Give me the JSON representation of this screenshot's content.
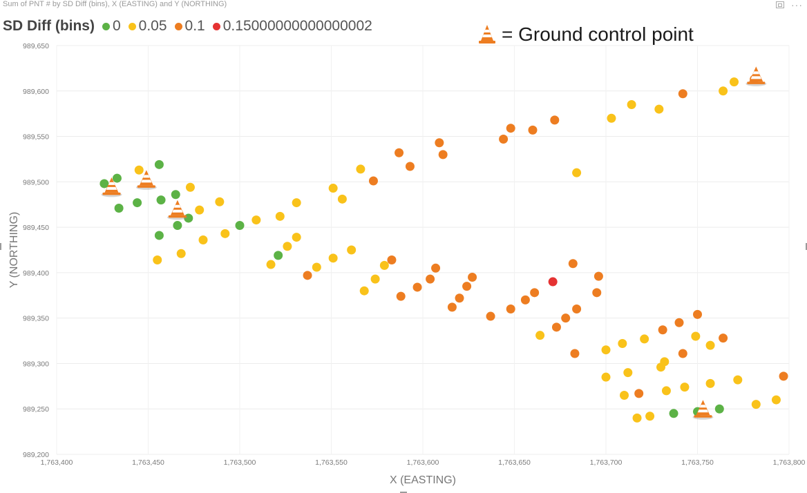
{
  "visual": {
    "title": "Sum of PNT # by SD Diff (bins), X (EASTING) and Y (NORTHING)",
    "toolbar": {
      "focus_icon": "focus-mode-icon",
      "more_icon": "more-options-icon",
      "more_label": "···"
    }
  },
  "legend": {
    "title": "SD Diff (bins)",
    "items": [
      {
        "label": "0",
        "color": "#5cb246"
      },
      {
        "label": "0.05",
        "color": "#f9c21a"
      },
      {
        "label": "0.1",
        "color": "#ed7d21"
      },
      {
        "label": "0.15000000000000002",
        "color": "#e53232"
      }
    ]
  },
  "annotation": {
    "icon": "traffic-cone-icon",
    "text": "= Ground control point"
  },
  "chart_data": {
    "type": "scatter",
    "xlabel": "X (EASTING)",
    "ylabel": "Y (NORTHING)",
    "xlim": [
      1763400,
      1763800
    ],
    "ylim": [
      989200,
      989650
    ],
    "xticks": [
      1763400,
      1763450,
      1763500,
      1763550,
      1763600,
      1763650,
      1763700,
      1763750,
      1763800
    ],
    "yticks": [
      989200,
      989250,
      989300,
      989350,
      989400,
      989450,
      989500,
      989550,
      989600,
      989650
    ],
    "xtick_labels": [
      "1,763,400",
      "1,763,450",
      "1,763,500",
      "1,763,550",
      "1,763,600",
      "1,763,650",
      "1,763,700",
      "1,763,750",
      "1,763,800"
    ],
    "ytick_labels": [
      "989,200",
      "989,250",
      "989,300",
      "989,350",
      "989,400",
      "989,450",
      "989,500",
      "989,550",
      "989,600",
      "989,650"
    ],
    "grid": true,
    "series": [
      {
        "name": "0",
        "color": "#5cb246",
        "points": [
          [
            1763426,
            989498
          ],
          [
            1763433,
            989504
          ],
          [
            1763434,
            989471
          ],
          [
            1763444,
            989477
          ],
          [
            1763456,
            989519
          ],
          [
            1763457,
            989480
          ],
          [
            1763465,
            989486
          ],
          [
            1763456,
            989441
          ],
          [
            1763466,
            989452
          ],
          [
            1763472,
            989460
          ],
          [
            1763500,
            989452
          ],
          [
            1763521,
            989419
          ],
          [
            1763737,
            989245
          ],
          [
            1763750,
            989247
          ],
          [
            1763762,
            989250
          ]
        ]
      },
      {
        "name": "0.05",
        "color": "#f9c21a",
        "points": [
          [
            1763445,
            989513
          ],
          [
            1763455,
            989414
          ],
          [
            1763468,
            989421
          ],
          [
            1763473,
            989494
          ],
          [
            1763478,
            989469
          ],
          [
            1763480,
            989436
          ],
          [
            1763489,
            989478
          ],
          [
            1763492,
            989443
          ],
          [
            1763509,
            989458
          ],
          [
            1763517,
            989409
          ],
          [
            1763522,
            989462
          ],
          [
            1763526,
            989429
          ],
          [
            1763531,
            989439
          ],
          [
            1763531,
            989477
          ],
          [
            1763542,
            989406
          ],
          [
            1763551,
            989416
          ],
          [
            1763551,
            989493
          ],
          [
            1763556,
            989481
          ],
          [
            1763561,
            989425
          ],
          [
            1763566,
            989514
          ],
          [
            1763568,
            989380
          ],
          [
            1763574,
            989393
          ],
          [
            1763579,
            989408
          ],
          [
            1763664,
            989331
          ],
          [
            1763684,
            989510
          ],
          [
            1763700,
            989315
          ],
          [
            1763700,
            989285
          ],
          [
            1763703,
            989570
          ],
          [
            1763709,
            989322
          ],
          [
            1763710,
            989265
          ],
          [
            1763712,
            989290
          ],
          [
            1763714,
            989585
          ],
          [
            1763717,
            989240
          ],
          [
            1763721,
            989327
          ],
          [
            1763724,
            989242
          ],
          [
            1763729,
            989580
          ],
          [
            1763730,
            989296
          ],
          [
            1763732,
            989302
          ],
          [
            1763733,
            989270
          ],
          [
            1763743,
            989274
          ],
          [
            1763749,
            989330
          ],
          [
            1763757,
            989278
          ],
          [
            1763757,
            989320
          ],
          [
            1763764,
            989600
          ],
          [
            1763770,
            989610
          ],
          [
            1763772,
            989282
          ],
          [
            1763782,
            989255
          ],
          [
            1763793,
            989260
          ]
        ]
      },
      {
        "name": "0.1",
        "color": "#ed7d21",
        "points": [
          [
            1763537,
            989397
          ],
          [
            1763573,
            989501
          ],
          [
            1763583,
            989414
          ],
          [
            1763587,
            989532
          ],
          [
            1763588,
            989374
          ],
          [
            1763593,
            989517
          ],
          [
            1763597,
            989384
          ],
          [
            1763604,
            989393
          ],
          [
            1763607,
            989405
          ],
          [
            1763609,
            989543
          ],
          [
            1763611,
            989530
          ],
          [
            1763616,
            989362
          ],
          [
            1763620,
            989372
          ],
          [
            1763624,
            989385
          ],
          [
            1763627,
            989395
          ],
          [
            1763637,
            989352
          ],
          [
            1763644,
            989547
          ],
          [
            1763648,
            989559
          ],
          [
            1763648,
            989360
          ],
          [
            1763656,
            989370
          ],
          [
            1763660,
            989557
          ],
          [
            1763661,
            989378
          ],
          [
            1763672,
            989568
          ],
          [
            1763673,
            989340
          ],
          [
            1763678,
            989350
          ],
          [
            1763682,
            989410
          ],
          [
            1763683,
            989311
          ],
          [
            1763684,
            989360
          ],
          [
            1763695,
            989378
          ],
          [
            1763696,
            989396
          ],
          [
            1763718,
            989267
          ],
          [
            1763731,
            989337
          ],
          [
            1763740,
            989345
          ],
          [
            1763742,
            989311
          ],
          [
            1763742,
            989597
          ],
          [
            1763750,
            989354
          ],
          [
            1763764,
            989328
          ],
          [
            1763781,
            989613
          ],
          [
            1763797,
            989286
          ]
        ]
      },
      {
        "name": "0.15000000000000002",
        "color": "#e53232",
        "points": [
          [
            1763671,
            989390
          ]
        ]
      }
    ],
    "ground_control_points": [
      [
        1763430,
        989495
      ],
      [
        1763449,
        989503
      ],
      [
        1763466,
        989470
      ],
      [
        1763753,
        989250
      ],
      [
        1763782,
        989617
      ]
    ]
  }
}
